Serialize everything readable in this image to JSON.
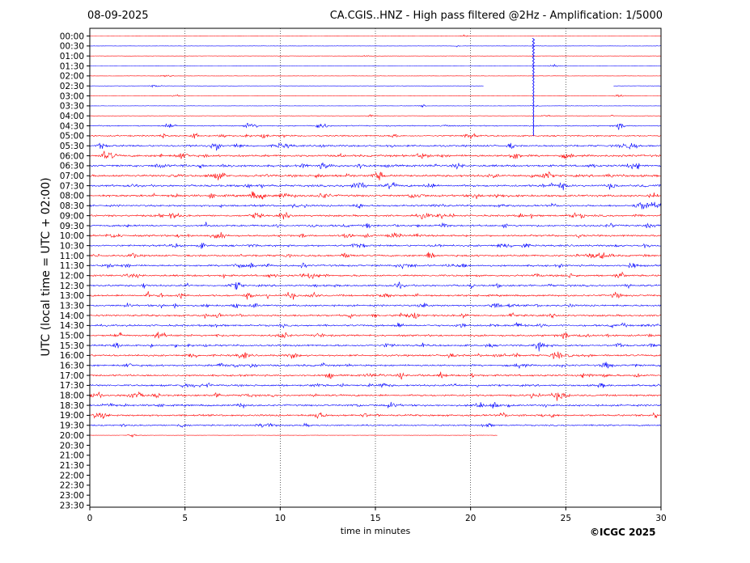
{
  "header": {
    "date": "08-09-2025",
    "title": "CA.CGIS..HNZ - High pass filtered @2Hz - Amplification: 1/5000"
  },
  "footer": {
    "copyright": "©ICGC 2025"
  },
  "chart_data": {
    "type": "line",
    "title": "CA.CGIS..HNZ - High pass filtered @2Hz - Amplification: 1/5000",
    "xlabel": "time in minutes",
    "ylabel": "UTC (local time = UTC + 02:00)",
    "xlim": [
      0,
      30
    ],
    "x_ticks": [
      0,
      5,
      10,
      15,
      20,
      25,
      30
    ],
    "grid": "vertical dotted at every 5 minutes",
    "row_labels": [
      "00:00",
      "00:30",
      "01:00",
      "01:30",
      "02:00",
      "02:30",
      "03:00",
      "03:30",
      "04:00",
      "04:30",
      "05:00",
      "05:30",
      "06:00",
      "06:30",
      "07:00",
      "07:30",
      "08:00",
      "08:30",
      "09:00",
      "09:30",
      "10:00",
      "10:30",
      "11:00",
      "11:30",
      "12:00",
      "12:30",
      "13:00",
      "13:30",
      "14:00",
      "14:30",
      "15:00",
      "15:30",
      "16:00",
      "16:30",
      "17:00",
      "17:30",
      "18:00",
      "18:30",
      "19:00",
      "19:30",
      "20:00",
      "20:30",
      "21:00",
      "21:30",
      "22:00",
      "22:30",
      "23:00",
      "23:30"
    ],
    "colors": {
      "red_trace": "#ff0000",
      "blue_trace": "#0000ff",
      "grid": "#000000"
    },
    "trace_color_pattern": "rows alternate red, blue starting with red at 00:00",
    "last_row_with_data": "20:00",
    "last_row_end_minute": 21.4,
    "row_0230_gap": [
      20.7,
      27.5
    ],
    "large_event": {
      "row": "01:00",
      "minute": 23.3,
      "extends_to_row": "05:00"
    },
    "noise_level": [
      0.02,
      0.02,
      0.03,
      0.03,
      0.03,
      0.03,
      0.04,
      0.05,
      0.08,
      0.12,
      0.2,
      0.3,
      0.35,
      0.35,
      0.38,
      0.35,
      0.35,
      0.3,
      0.3,
      0.3,
      0.3,
      0.3,
      0.3,
      0.3,
      0.3,
      0.3,
      0.3,
      0.3,
      0.3,
      0.3,
      0.3,
      0.3,
      0.3,
      0.3,
      0.3,
      0.3,
      0.3,
      0.3,
      0.3,
      0.2,
      0.05,
      0,
      0,
      0,
      0,
      0,
      0,
      0
    ]
  }
}
